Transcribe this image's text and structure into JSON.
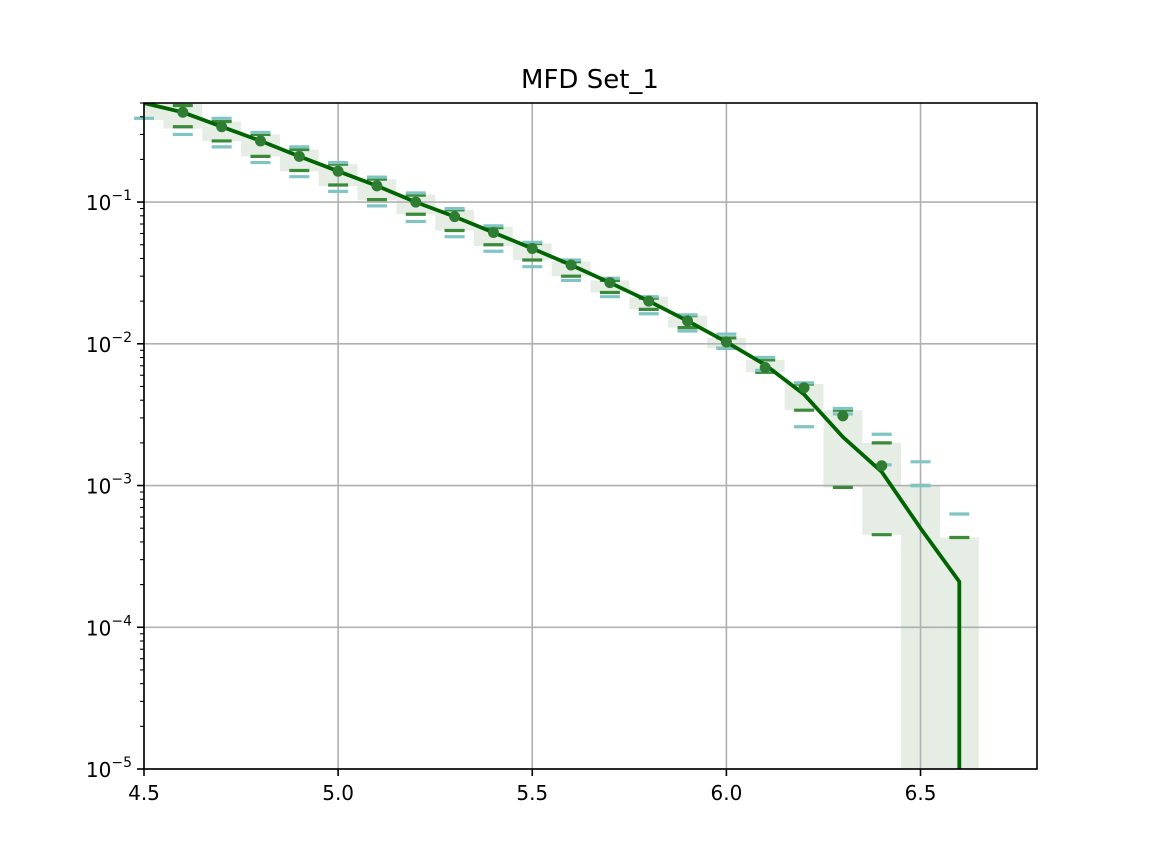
{
  "chart_data": {
    "type": "line",
    "title": "MFD Set_1",
    "xlabel": "",
    "ylabel": "",
    "xlim": [
      4.5,
      6.8
    ],
    "ylim": [
      1e-05,
      0.5
    ],
    "yscale": "log",
    "grid": true,
    "x_ticks": [
      {
        "value": 4.5,
        "label": "4.5"
      },
      {
        "value": 5.0,
        "label": "5.0"
      },
      {
        "value": 5.5,
        "label": "5.5"
      },
      {
        "value": 6.0,
        "label": "6.0"
      },
      {
        "value": 6.5,
        "label": "6.5"
      }
    ],
    "y_ticks": [
      {
        "value": 1e-05,
        "base": "10",
        "exp": "−5"
      },
      {
        "value": 0.0001,
        "base": "10",
        "exp": "−4"
      },
      {
        "value": 0.001,
        "base": "10",
        "exp": "−3"
      },
      {
        "value": 0.01,
        "base": "10",
        "exp": "−2"
      },
      {
        "value": 0.1,
        "base": "10",
        "exp": "−1"
      }
    ],
    "colors": {
      "model_line": "#006400",
      "observed_points": "#2e7d32",
      "uncertainty_band": "#e5ede5",
      "dark_bounds": "#3a8a3a",
      "light_bounds": "#80c4c4"
    },
    "model_line": {
      "x": [
        4.5,
        4.6,
        4.7,
        4.8,
        4.9,
        5.0,
        5.1,
        5.2,
        5.3,
        5.4,
        5.5,
        5.6,
        5.7,
        5.8,
        5.9,
        6.0,
        6.1,
        6.2,
        6.3,
        6.4,
        6.5,
        6.6,
        6.6
      ],
      "y": [
        0.5,
        0.43,
        0.34,
        0.27,
        0.21,
        0.165,
        0.13,
        0.1,
        0.079,
        0.061,
        0.047,
        0.036,
        0.027,
        0.02,
        0.0145,
        0.0103,
        0.0071,
        0.0044,
        0.0022,
        0.00125,
        0.0005,
        0.00021,
        1e-05
      ]
    },
    "observed_points": {
      "x": [
        4.6,
        4.7,
        4.8,
        4.9,
        5.0,
        5.1,
        5.2,
        5.3,
        5.4,
        5.5,
        5.6,
        5.7,
        5.8,
        5.9,
        6.0,
        6.1,
        6.2,
        6.3,
        6.4
      ],
      "y": [
        0.43,
        0.34,
        0.27,
        0.21,
        0.165,
        0.13,
        0.1,
        0.079,
        0.061,
        0.047,
        0.036,
        0.027,
        0.02,
        0.0145,
        0.0103,
        0.0068,
        0.0049,
        0.0031,
        0.00138
      ]
    },
    "uncertainty_band": {
      "bins": [
        {
          "x0": 4.45,
          "x1": 4.55,
          "lo": 0.38,
          "hi": 0.5
        },
        {
          "x0": 4.55,
          "x1": 4.65,
          "lo": 0.33,
          "hi": 0.5
        },
        {
          "x0": 4.65,
          "x1": 4.75,
          "lo": 0.27,
          "hi": 0.37
        },
        {
          "x0": 4.75,
          "x1": 4.85,
          "lo": 0.21,
          "hi": 0.3
        },
        {
          "x0": 4.85,
          "x1": 4.95,
          "lo": 0.165,
          "hi": 0.235
        },
        {
          "x0": 4.95,
          "x1": 5.05,
          "lo": 0.13,
          "hi": 0.185
        },
        {
          "x0": 5.05,
          "x1": 5.15,
          "lo": 0.103,
          "hi": 0.145
        },
        {
          "x0": 5.15,
          "x1": 5.25,
          "lo": 0.082,
          "hi": 0.113
        },
        {
          "x0": 5.25,
          "x1": 5.35,
          "lo": 0.063,
          "hi": 0.088
        },
        {
          "x0": 5.35,
          "x1": 5.45,
          "lo": 0.049,
          "hi": 0.067
        },
        {
          "x0": 5.45,
          "x1": 5.55,
          "lo": 0.039,
          "hi": 0.051
        },
        {
          "x0": 5.55,
          "x1": 5.65,
          "lo": 0.03,
          "hi": 0.038
        },
        {
          "x0": 5.65,
          "x1": 5.75,
          "lo": 0.023,
          "hi": 0.028
        },
        {
          "x0": 5.75,
          "x1": 5.85,
          "lo": 0.0175,
          "hi": 0.0215
        },
        {
          "x0": 5.85,
          "x1": 5.95,
          "lo": 0.013,
          "hi": 0.0158
        },
        {
          "x0": 5.95,
          "x1": 6.05,
          "lo": 0.0093,
          "hi": 0.011
        },
        {
          "x0": 6.05,
          "x1": 6.15,
          "lo": 0.0063,
          "hi": 0.0077
        },
        {
          "x0": 6.15,
          "x1": 6.25,
          "lo": 0.0034,
          "hi": 0.0052
        },
        {
          "x0": 6.25,
          "x1": 6.35,
          "lo": 0.00097,
          "hi": 0.0034
        },
        {
          "x0": 6.35,
          "x1": 6.45,
          "lo": 0.00045,
          "hi": 0.002
        },
        {
          "x0": 6.45,
          "x1": 6.55,
          "lo": 1e-05,
          "hi": 0.001
        },
        {
          "x0": 6.55,
          "x1": 6.65,
          "lo": 1e-05,
          "hi": 0.00043
        }
      ]
    },
    "bound_markers": [
      {
        "name": "dark",
        "color_key": "dark_bounds",
        "x": [
          4.6,
          4.6,
          4.7,
          4.7,
          4.8,
          4.8,
          4.9,
          4.9,
          5.0,
          5.0,
          5.1,
          5.1,
          5.2,
          5.2,
          5.3,
          5.3,
          5.4,
          5.4,
          5.5,
          5.5,
          5.6,
          5.6,
          5.7,
          5.7,
          5.8,
          5.8,
          5.9,
          5.9,
          6.0,
          6.0,
          6.1,
          6.1,
          6.2,
          6.2,
          6.3,
          6.3,
          6.4,
          6.4,
          6.5,
          6.6
        ],
        "y": [
          0.48,
          0.34,
          0.37,
          0.27,
          0.3,
          0.21,
          0.235,
          0.167,
          0.185,
          0.132,
          0.145,
          0.104,
          0.112,
          0.082,
          0.088,
          0.063,
          0.066,
          0.05,
          0.051,
          0.039,
          0.038,
          0.03,
          0.028,
          0.023,
          0.021,
          0.0175,
          0.0158,
          0.013,
          0.011,
          0.0093,
          0.0077,
          0.0063,
          0.0052,
          0.0034,
          0.0034,
          0.00097,
          0.002,
          0.00045,
          0.001,
          0.00043
        ]
      },
      {
        "name": "light",
        "color_key": "light_bounds",
        "x": [
          4.5,
          4.6,
          4.7,
          4.7,
          4.8,
          4.8,
          4.9,
          4.9,
          5.0,
          5.0,
          5.1,
          5.1,
          5.2,
          5.2,
          5.3,
          5.3,
          5.4,
          5.4,
          5.5,
          5.5,
          5.6,
          5.6,
          5.7,
          5.7,
          5.8,
          5.8,
          5.9,
          5.9,
          6.0,
          6.0,
          6.1,
          6.1,
          6.2,
          6.2,
          6.3,
          6.3,
          6.4,
          6.4,
          6.5,
          6.5,
          6.6
        ],
        "y": [
          0.39,
          0.3,
          0.39,
          0.245,
          0.31,
          0.19,
          0.245,
          0.151,
          0.19,
          0.119,
          0.15,
          0.094,
          0.116,
          0.073,
          0.09,
          0.057,
          0.068,
          0.045,
          0.052,
          0.035,
          0.039,
          0.028,
          0.029,
          0.0215,
          0.0215,
          0.0163,
          0.016,
          0.0123,
          0.0117,
          0.0093,
          0.008,
          0.0065,
          0.0053,
          0.0026,
          0.0035,
          0.0032,
          0.0023,
          0.0014,
          0.00147,
          0.001,
          0.00063
        ]
      }
    ]
  }
}
